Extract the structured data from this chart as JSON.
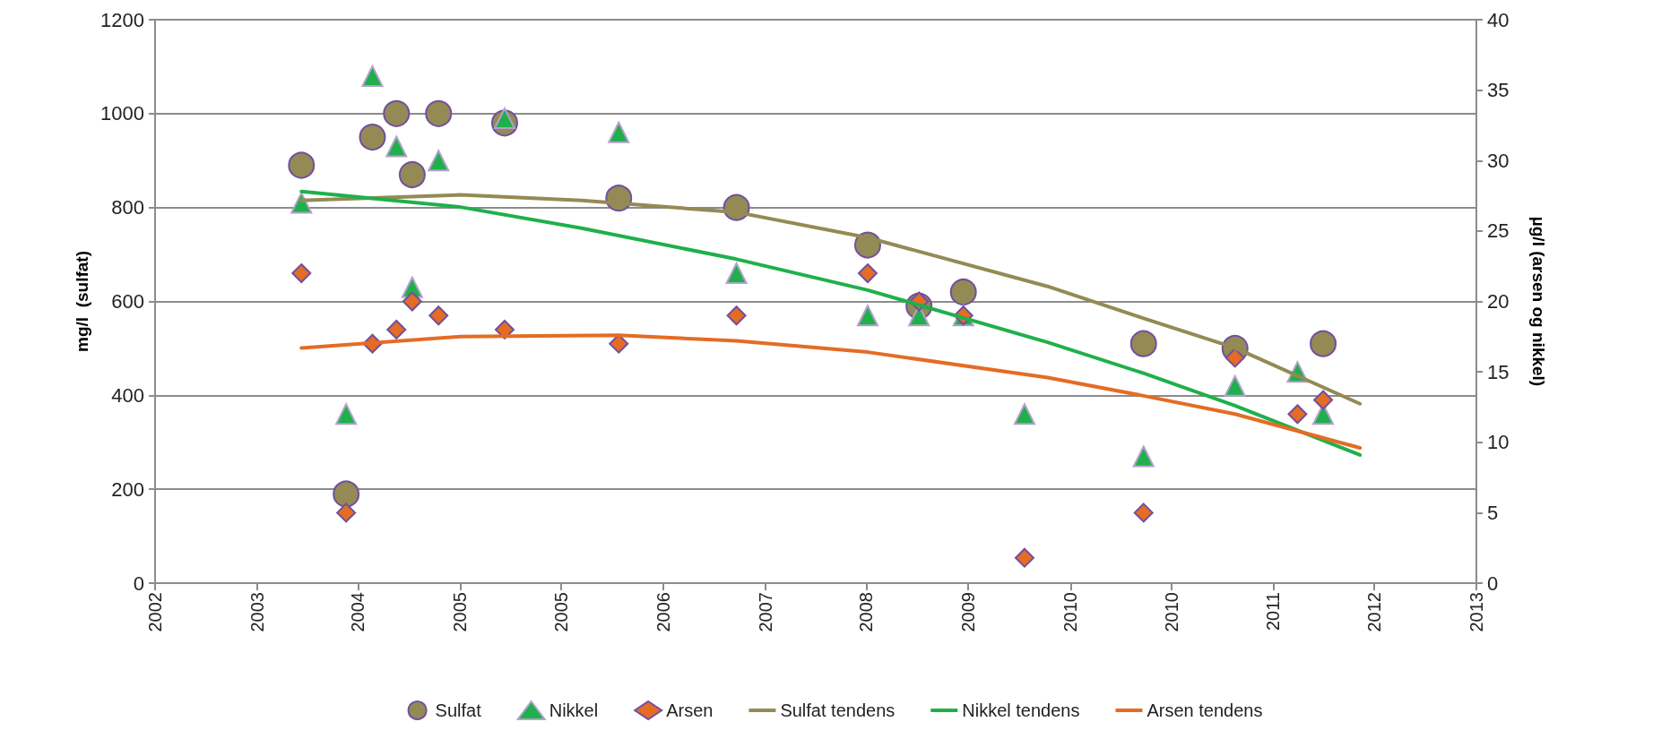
{
  "chart_data": {
    "type": "scatter",
    "ylabel": "mg/l  (sulfat)",
    "y2label": "µg/l (arsen og nikkel)",
    "xlim": [
      "2002-07-02",
      "2013-07-02"
    ],
    "xticks": [
      {
        "value": "2002-07-02",
        "label": "2002"
      },
      {
        "value": "2003-05-08",
        "label": "2003"
      },
      {
        "value": "2004-03-10",
        "label": "2004"
      },
      {
        "value": "2005-01-15",
        "label": "2005"
      },
      {
        "value": "2005-11-17",
        "label": "2005"
      },
      {
        "value": "2006-09-24",
        "label": "2006"
      },
      {
        "value": "2007-07-31",
        "label": "2007"
      },
      {
        "value": "2008-06-03",
        "label": "2008"
      },
      {
        "value": "2009-04-09",
        "label": "2009"
      },
      {
        "value": "2010-02-14",
        "label": "2010"
      },
      {
        "value": "2010-12-17",
        "label": "2010"
      },
      {
        "value": "2011-10-23",
        "label": "2011"
      },
      {
        "value": "2012-08-25",
        "label": "2012"
      },
      {
        "value": "2013-07-02",
        "label": "2013"
      }
    ],
    "ylim": [
      0,
      1200
    ],
    "yticks": [
      0,
      200,
      400,
      600,
      800,
      1000,
      1200
    ],
    "y2lim": [
      0,
      40
    ],
    "y2ticks": [
      0,
      5,
      10,
      15,
      20,
      25,
      30,
      35,
      40
    ],
    "grid": "y",
    "legend": "bottom",
    "series": [
      {
        "name": "Sulfat",
        "marker": "circle",
        "color": "#948a54",
        "x": [
          "2003-09-20",
          "2004-02-03",
          "2004-04-23",
          "2004-07-05",
          "2004-08-22",
          "2004-11-10",
          "2005-05-30",
          "2006-05-12",
          "2007-05-05",
          "2008-06-07",
          "2008-11-10",
          "2009-03-25",
          "2010-09-24",
          "2011-06-29",
          "2012-03-23"
        ],
        "values": [
          890,
          190,
          950,
          1000,
          870,
          1000,
          980,
          820,
          800,
          720,
          590,
          620,
          510,
          500,
          510
        ]
      },
      {
        "name": "Nikkel",
        "marker": "triangle",
        "axis": "y2",
        "color": "#1fb04b",
        "x": [
          "2003-09-20",
          "2004-02-03",
          "2004-04-23",
          "2004-07-05",
          "2004-08-22",
          "2004-11-10",
          "2005-05-30",
          "2006-05-12",
          "2007-05-05",
          "2008-06-07",
          "2008-11-10",
          "2009-03-25",
          "2009-09-27",
          "2010-09-24",
          "2011-06-29",
          "2012-01-05",
          "2012-03-23"
        ],
        "values": [
          27,
          12,
          36,
          31,
          21,
          30,
          33,
          32,
          22,
          19,
          19,
          19,
          12,
          9,
          14,
          15,
          12
        ]
      },
      {
        "name": "Arsen",
        "marker": "diamond",
        "axis": "y2",
        "color": "#e46c24",
        "x": [
          "2003-09-20",
          "2004-02-03",
          "2004-04-23",
          "2004-07-05",
          "2004-08-22",
          "2004-11-10",
          "2005-05-30",
          "2006-05-12",
          "2007-05-05",
          "2008-06-07",
          "2008-11-10",
          "2009-03-25",
          "2009-09-27",
          "2010-09-24",
          "2011-06-29",
          "2012-01-05",
          "2012-03-23"
        ],
        "values": [
          22,
          5,
          17,
          18,
          20,
          19,
          18,
          17,
          19,
          22,
          20,
          19,
          1.8,
          5,
          16,
          12,
          13
        ]
      },
      {
        "name": "Sulfat tendens",
        "type": "line",
        "marker": "none",
        "color": "#948a54",
        "x": [
          "2003-09-20",
          "2005-01-15",
          "2006-01-19",
          "2007-05-05",
          "2008-06-07",
          "2009-12-06",
          "2010-09-24",
          "2011-06-29",
          "2012-07-13"
        ],
        "values": [
          815,
          827,
          815,
          790,
          736,
          632,
          564,
          501,
          382
        ]
      },
      {
        "name": "Nikkel tendens",
        "type": "line",
        "marker": "none",
        "axis": "y2",
        "color": "#1fb04b",
        "x": [
          "2003-09-20",
          "2005-01-15",
          "2006-01-19",
          "2007-05-05",
          "2008-06-07",
          "2009-12-06",
          "2010-09-24",
          "2011-06-29",
          "2012-07-13"
        ],
        "values": [
          27.8,
          26.7,
          25.2,
          23.0,
          20.8,
          17.1,
          14.9,
          12.6,
          9.1
        ]
      },
      {
        "name": "Arsen tendens",
        "type": "line",
        "marker": "none",
        "axis": "y2",
        "color": "#e46c24",
        "x": [
          "2003-09-20",
          "2005-01-15",
          "2006-05-12",
          "2007-05-05",
          "2008-06-07",
          "2009-12-06",
          "2010-09-24",
          "2011-06-29",
          "2012-07-13"
        ],
        "values": [
          16.7,
          17.5,
          17.6,
          17.2,
          16.4,
          14.6,
          13.3,
          12.0,
          9.6
        ]
      }
    ]
  }
}
